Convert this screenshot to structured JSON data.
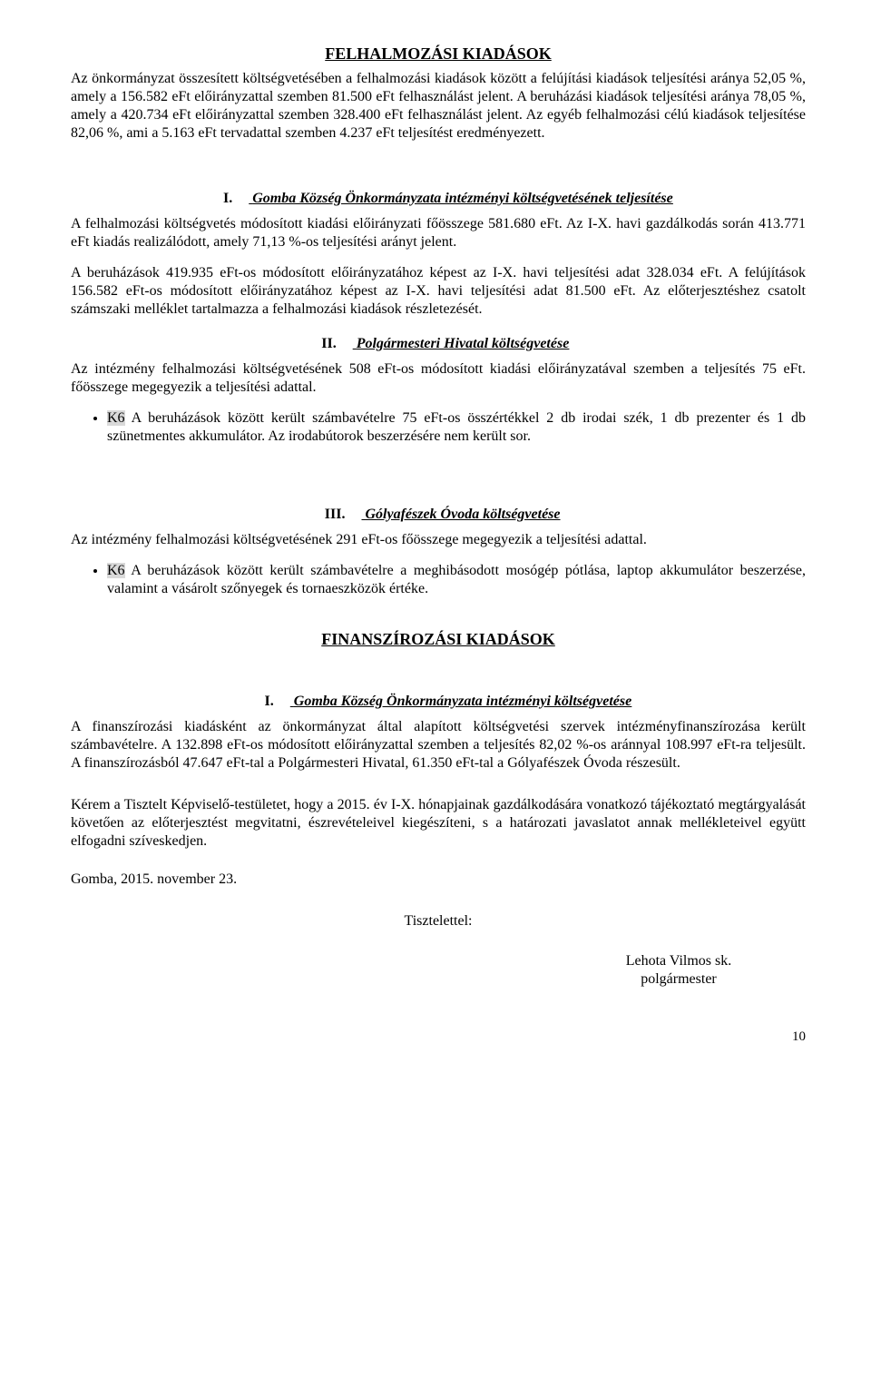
{
  "section1": {
    "title": "FELHALMOZÁSI KIADÁSOK",
    "para1": "Az önkormányzat összesített költségvetésében a felhalmozási kiadások között a felújítási kiadások teljesítési aránya 52,05 %, amely a 156.582 eFt előirányzattal szemben 81.500 eFt felhasználást jelent. A beruházási kiadások teljesítési aránya 78,05 %, amely a 420.734 eFt előirányzattal szemben 328.400 eFt felhasználást jelent. Az egyéb felhalmozási célú kiadások teljesítése 82,06 %, ami a 5.163 eFt tervadattal szemben 4.237 eFt teljesítést eredményezett."
  },
  "heading_I": {
    "roman": "I.",
    "text": "Gomba Község Önkormányzata intézményi költségvetésének  teljesítése"
  },
  "para_I_1": "A felhalmozási költségvetés módosított kiadási előirányzati főösszege 581.680 eFt. Az I-X. havi gazdálkodás során 413.771 eFt kiadás realizálódott, amely 71,13 %-os teljesítési arányt jelent.",
  "para_I_2": "A beruházások 419.935 eFt-os módosított előirányzatához képest az I-X. havi teljesítési adat 328.034 eFt. A felújítások 156.582 eFt-os módosított előirányzatához képest az I-X. havi teljesítési adat 81.500 eFt. Az előterjesztéshez csatolt számszaki melléklet tartalmazza a felhalmozási kiadások részletezését.",
  "heading_II": {
    "roman": "II.",
    "text": "Polgármesteri Hivatal költségvetése"
  },
  "para_II_1": "Az intézmény felhalmozási költségvetésének 508 eFt-os módosított kiadási előirányzatával szemben a teljesítés 75 eFt.  főösszege megegyezik a teljesítési adattal.",
  "bullet_II_prefix": "K6",
  "bullet_II_rest": " A beruházások között került számbavételre 75 eFt-os összértékkel 2 db irodai szék, 1 db prezenter és 1 db szünetmentes akkumulátor. Az irodabútorok beszerzésére nem került sor.",
  "heading_III": {
    "roman": "III.",
    "text": "Gólyafészek Óvoda költségvetése"
  },
  "para_III_1": "Az intézmény felhalmozási költségvetésének 291 eFt-os főösszege megegyezik a teljesítési adattal.",
  "bullet_III_prefix": "K6",
  "bullet_III_rest": " A beruházások között került számbavételre a meghibásodott mosógép pótlása, laptop akkumulátor beszerzése, valamint a vásárolt szőnyegek és tornaeszközök értéke.",
  "section2": {
    "title": "FINANSZÍROZÁSI  KIADÁSOK"
  },
  "heading2_I": {
    "roman": "I.",
    "text": "Gomba Község Önkormányzata intézményi költségvetése"
  },
  "para2_I": "A finanszírozási kiadásként az önkormányzat által alapított költségvetési szervek intézményfinanszírozása került számbavételre. A 132.898 eFt-os módosított előirányzattal szemben a teljesítés 82,02 %-os aránnyal 108.997 eFt-ra teljesült. A finanszírozásból 47.647 eFt-tal a Polgármesteri Hivatal, 61.350 eFt-tal a Gólyafészek Óvoda részesült.",
  "closing": "Kérem a Tisztelt Képviselő-testületet, hogy a 2015. év I-X. hónapjainak gazdálkodására vonatkozó tájékoztató megtárgyalását követően az előterjesztést megvitatni, észrevételeivel kiegészíteni, s a határozati javaslatot annak mellékleteivel együtt elfogadni szíveskedjen.",
  "date": "Gomba, 2015. november 23.",
  "salutation": "Tisztelettel:",
  "signatory_name": "Lehota Vilmos sk.",
  "signatory_title": "polgármester",
  "page_number": "10"
}
